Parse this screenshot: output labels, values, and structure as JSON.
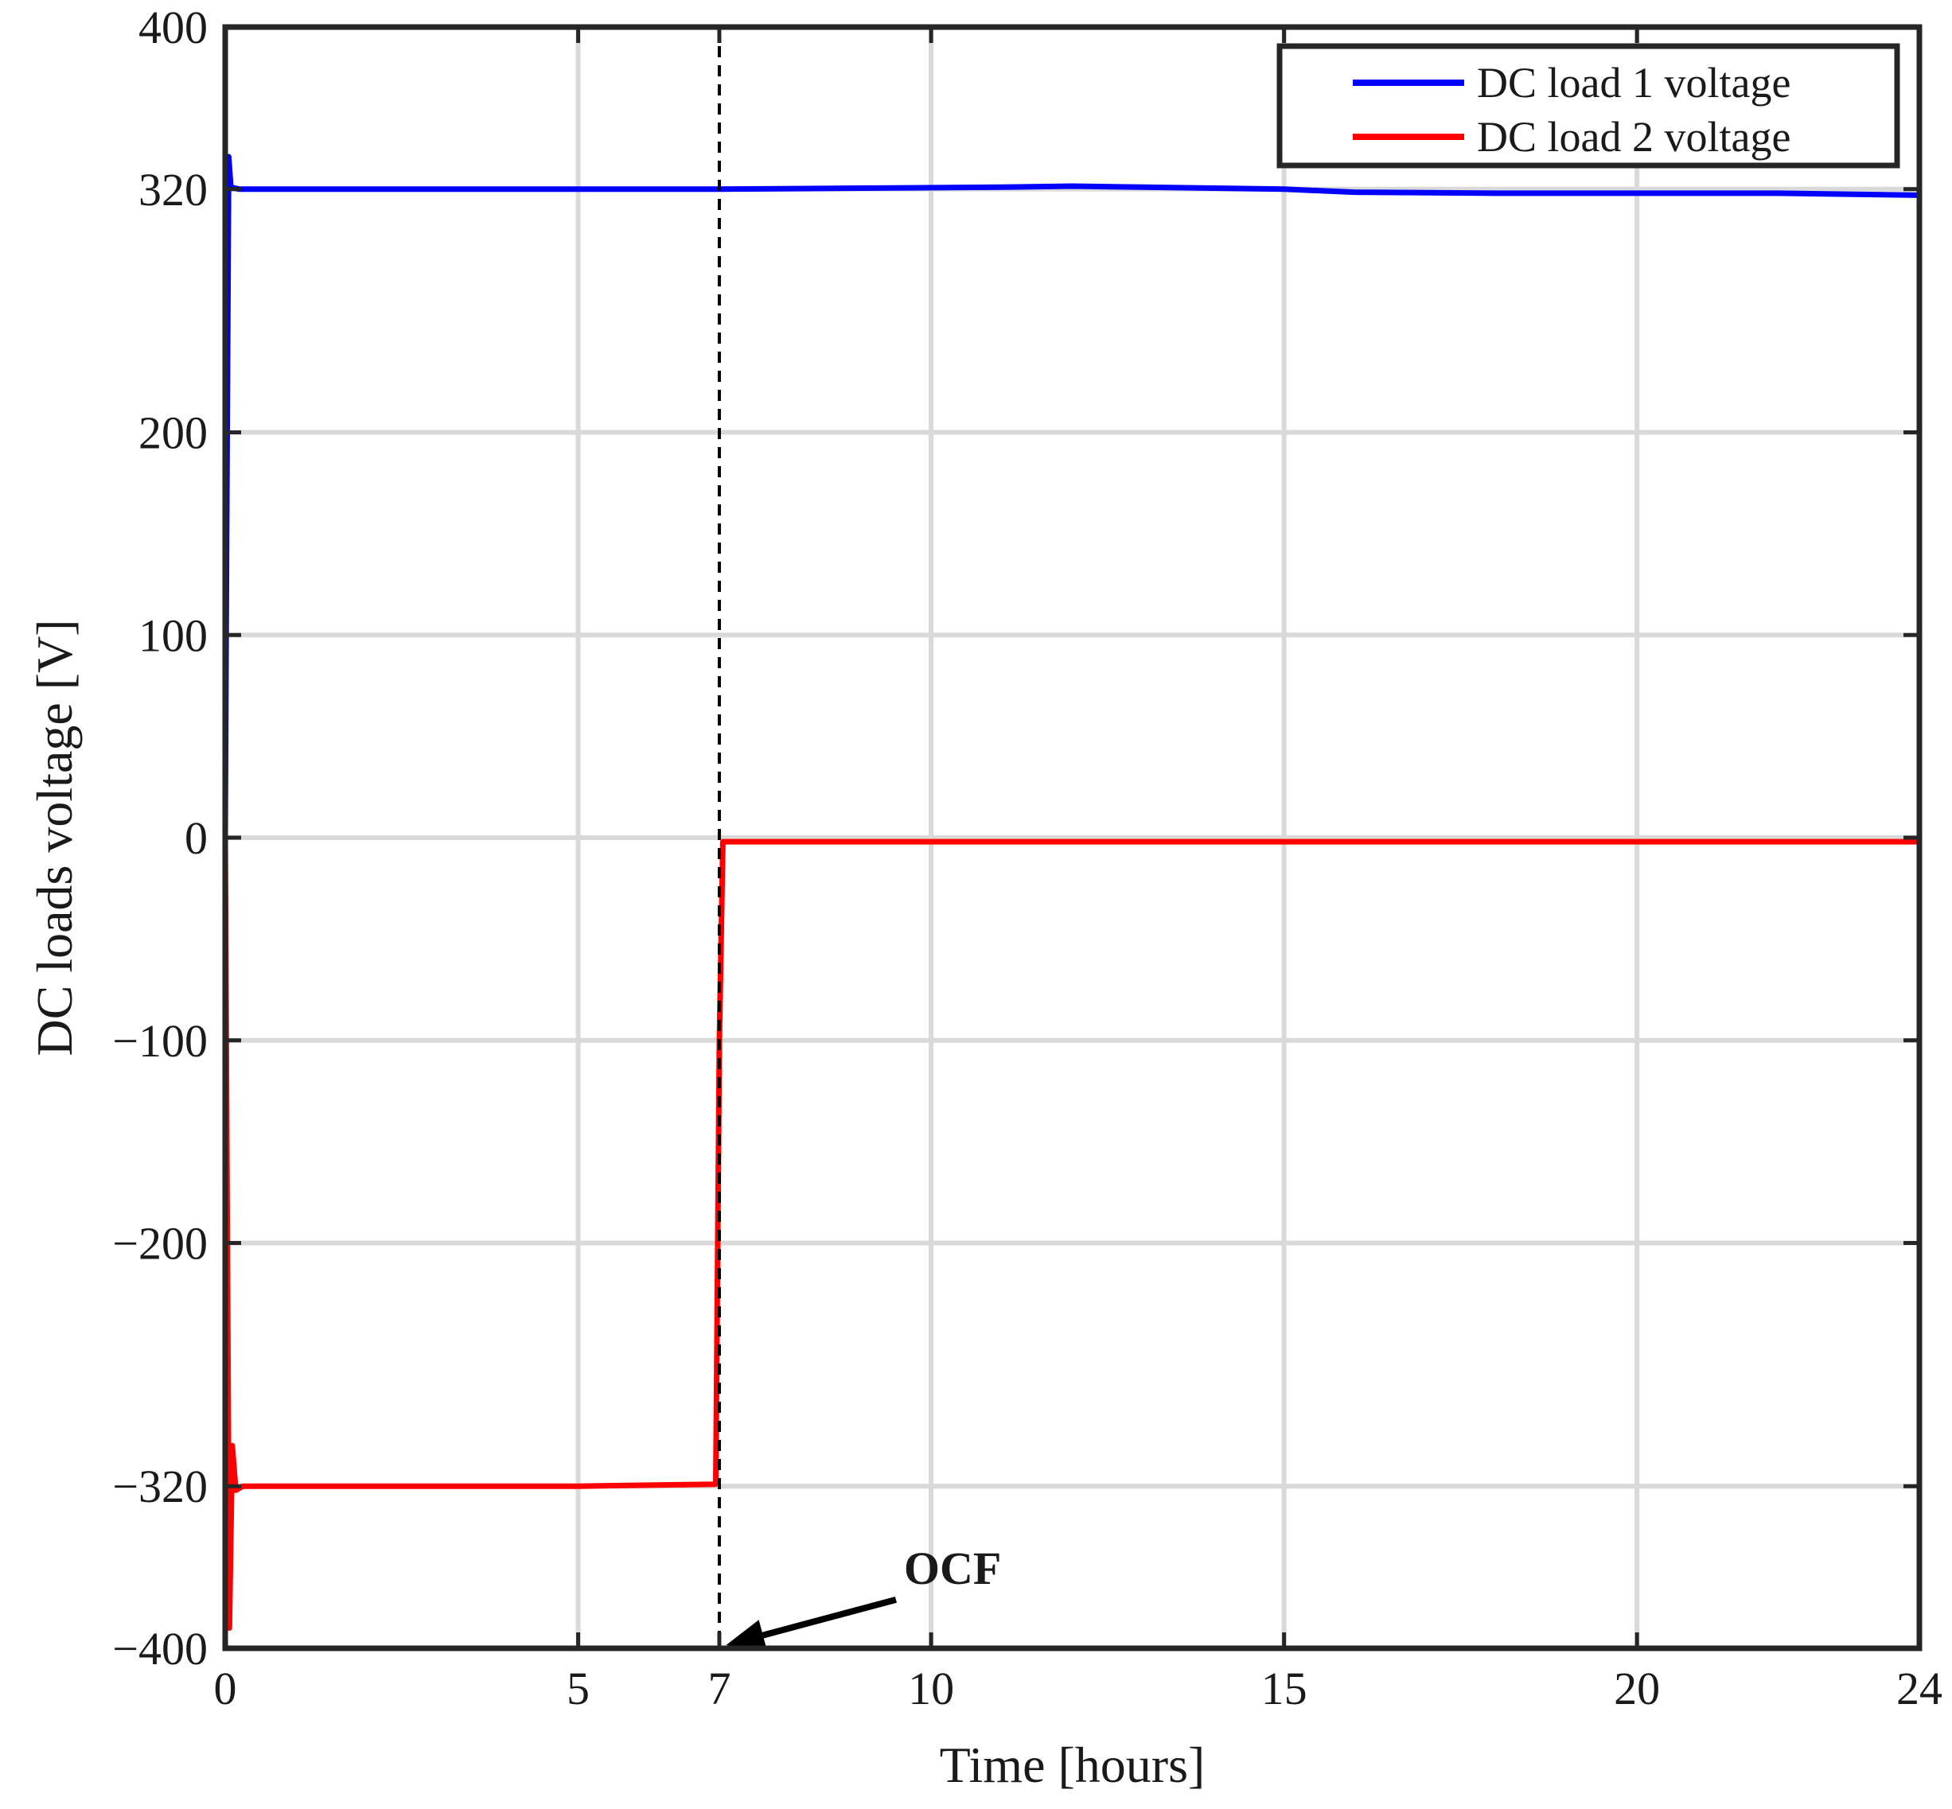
{
  "chart_data": {
    "type": "line",
    "xlabel": "Time [hours]",
    "ylabel": "DC loads voltage [V]",
    "xlim": [
      0,
      24
    ],
    "ylim": [
      -400,
      400
    ],
    "xticks": [
      {
        "value": 0,
        "label": "0"
      },
      {
        "value": 5,
        "label": "5"
      },
      {
        "value": 7,
        "label": "7"
      },
      {
        "value": 10,
        "label": "10"
      },
      {
        "value": 15,
        "label": "15"
      },
      {
        "value": 20,
        "label": "20"
      },
      {
        "value": 24,
        "label": "24"
      }
    ],
    "yticks": [
      {
        "value": 400,
        "label": "400"
      },
      {
        "value": 320,
        "label": "320"
      },
      {
        "value": 200,
        "label": "200"
      },
      {
        "value": 100,
        "label": "100"
      },
      {
        "value": 0,
        "label": "0"
      },
      {
        "value": -100,
        "label": "−100"
      },
      {
        "value": -200,
        "label": "−200"
      },
      {
        "value": -320,
        "label": "−320"
      },
      {
        "value": -400,
        "label": "−400"
      }
    ],
    "grid": true,
    "legend": "top-right",
    "series": [
      {
        "name": "DC load 1 voltage",
        "color": "#0000ff",
        "x": [
          0,
          0.02,
          0.05,
          0.08,
          0.2,
          1,
          3,
          5,
          7,
          9,
          11,
          12,
          13,
          14,
          15,
          16,
          18,
          20,
          22,
          24
        ],
        "y": [
          0,
          150,
          336,
          321,
          320,
          320,
          320,
          320,
          320,
          320.5,
          321,
          321.5,
          321,
          320.5,
          320,
          318.5,
          318,
          318,
          318,
          317
        ]
      },
      {
        "name": "DC load 2 voltage",
        "color": "#ff0000",
        "x": [
          0,
          0.03,
          0.06,
          0.1,
          0.15,
          0.25,
          1,
          3,
          5,
          6.95,
          7.0,
          7.05,
          10,
          15,
          20,
          24
        ],
        "y": [
          0,
          -200,
          -390,
          -300,
          -322,
          -320,
          -320,
          -320,
          -320,
          -319,
          -100,
          -2,
          -2,
          -2,
          -2,
          -2
        ]
      }
    ],
    "annotations": [
      {
        "type": "vline",
        "x": 7,
        "style": "dashed",
        "color": "#000000"
      },
      {
        "type": "arrow",
        "text": "OCF",
        "from": [
          8.6,
          -365
        ],
        "to": [
          7.05,
          -400
        ]
      }
    ]
  }
}
